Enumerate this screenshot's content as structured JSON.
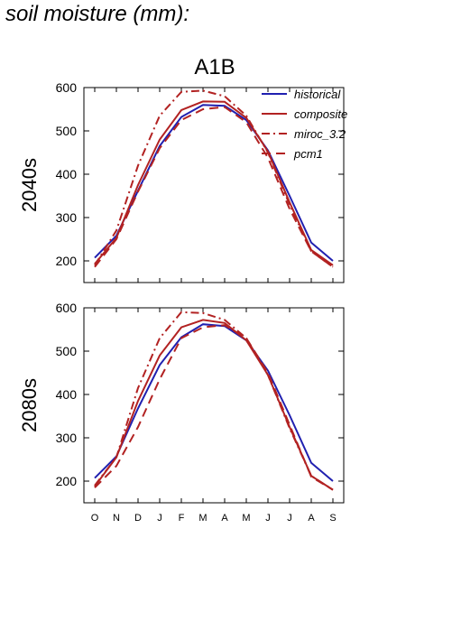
{
  "figure_title": "soil moisture (mm):",
  "chart_data": {
    "type": "line",
    "scenario": "A1B",
    "categories": [
      "O",
      "N",
      "D",
      "J",
      "F",
      "M",
      "A",
      "M",
      "J",
      "J",
      "A",
      "S"
    ],
    "ylim": [
      150,
      600
    ],
    "yticks": [
      200,
      300,
      400,
      500,
      600
    ],
    "legend_position": "top-right",
    "colors": {
      "historical": "#2020b0",
      "models": "#b22222"
    },
    "legend": [
      {
        "key": "historical",
        "label": "historical",
        "style": "solid",
        "color": "#2020b0"
      },
      {
        "key": "composite",
        "label": "composite",
        "style": "solid",
        "color": "#b22222"
      },
      {
        "key": "miroc",
        "label": "miroc_3.2",
        "style": "dashdot",
        "color": "#b22222"
      },
      {
        "key": "pcm1",
        "label": "pcm1",
        "style": "dash",
        "color": "#b22222"
      }
    ],
    "panels": [
      {
        "row_label": "2040s",
        "series": {
          "historical": [
            207,
            258,
            362,
            465,
            532,
            560,
            558,
            525,
            455,
            350,
            242,
            200
          ],
          "composite": [
            193,
            253,
            375,
            480,
            548,
            568,
            567,
            530,
            452,
            335,
            225,
            190
          ],
          "miroc": [
            190,
            270,
            420,
            535,
            590,
            593,
            580,
            535,
            450,
            330,
            222,
            186
          ],
          "pcm1": [
            186,
            250,
            360,
            460,
            525,
            550,
            555,
            520,
            438,
            320,
            222,
            186
          ]
        }
      },
      {
        "row_label": "2080s",
        "series": {
          "historical": [
            207,
            257,
            368,
            468,
            532,
            562,
            558,
            525,
            455,
            352,
            242,
            200
          ],
          "composite": [
            188,
            255,
            385,
            490,
            555,
            572,
            565,
            525,
            445,
            325,
            212,
            180
          ],
          "miroc": [
            190,
            255,
            415,
            530,
            590,
            588,
            572,
            530,
            445,
            322,
            212,
            180
          ],
          "pcm1": [
            185,
            235,
            325,
            435,
            530,
            555,
            560,
            530,
            450,
            330,
            210,
            180
          ]
        }
      }
    ]
  }
}
